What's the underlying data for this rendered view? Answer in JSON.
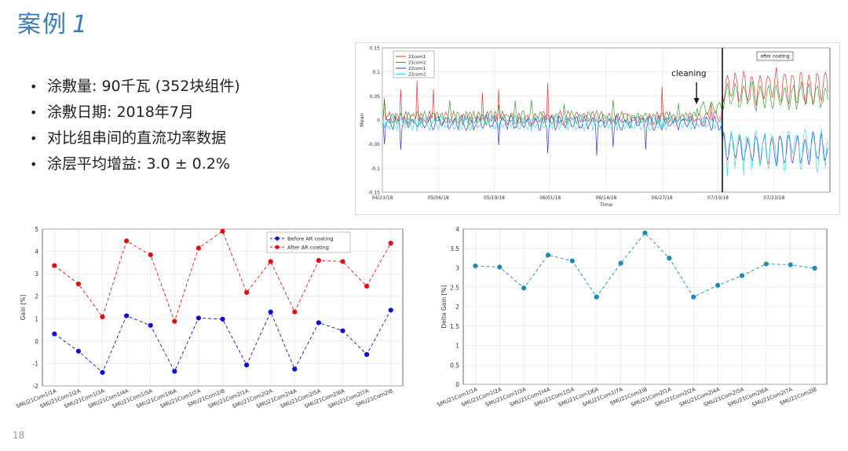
{
  "slide": {
    "title": "案例",
    "title_number": "1",
    "page_number": "18",
    "bullets": [
      "涂敷量: 90千瓦 (352块组件)",
      "涂敷日期: 2018年7月",
      "对比组串间的直流功率数据",
      "涂层平均增益: 3.0 ± 0.2%"
    ]
  },
  "colors": {
    "title": "#3b7bbd",
    "series_21com1": "#e02020",
    "series_21com2": "#1a9a1a",
    "series_22com1": "#2020c8",
    "series_22com2": "#20d8e8",
    "before": "#1010d0",
    "after": "#e01010",
    "delta": "#1f8ab8"
  },
  "chart_data": [
    {
      "type": "line",
      "xlabel": "Time",
      "ylabel": "Mean",
      "ylim": [
        -0.15,
        0.15
      ],
      "yticks": [
        "-0.15",
        "-0.1",
        "-0.05",
        "0",
        "0.05",
        "0.1",
        "0.15"
      ],
      "xticks": [
        "04/23/18",
        "05/06/18",
        "05/19/18",
        "06/01/18",
        "06/14/18",
        "06/27/18",
        "07/10/18",
        "07/23/18"
      ],
      "x_range": [
        "04/23/18",
        "08/05/18"
      ],
      "legend_position": "top-left",
      "series": [
        {
          "name": "21com1",
          "before_spike": 0.09,
          "after_level": 0.07
        },
        {
          "name": "21com2",
          "before_spike": 0.03,
          "after_level": 0.05
        },
        {
          "name": "22com1",
          "before_spike": -0.06,
          "after_level": -0.06
        },
        {
          "name": "22com2",
          "before_spike": -0.03,
          "after_level": -0.05
        }
      ],
      "annotations": {
        "cleaning": {
          "label": "cleaning",
          "date": "07/05/18"
        },
        "after_coating": {
          "label": "after coating",
          "date": "07/11/18"
        }
      },
      "grid": true
    },
    {
      "type": "line",
      "ylabel": "Gain [%]",
      "ylim": [
        -2,
        5
      ],
      "yticks": [
        "-2",
        "-1",
        "0",
        "1",
        "2",
        "3",
        "4",
        "5"
      ],
      "legend_position": "top-right",
      "categories": [
        "SMU21Com1I1A",
        "SMU21Com1I2A",
        "SMU21Com1I3A",
        "SMU21Com1I4A",
        "SMU21Com1I5A",
        "SMU21Com1I6A",
        "SMU21Com1I7A",
        "SMU21Com1I8",
        "SMU21Com2I1A",
        "SMU21Com2I2A",
        "SMU21Com2I4A",
        "SMU21Com2I5A",
        "SMU21Com2I6A",
        "SMU21Com2I7A",
        "SMU21Com2I8"
      ],
      "series": [
        {
          "name": "Before AR coating",
          "values": [
            0.32,
            -0.45,
            -1.4,
            1.13,
            0.7,
            -1.35,
            1.03,
            0.98,
            -1.07,
            1.3,
            -1.25,
            0.82,
            0.46,
            -0.6,
            1.38
          ]
        },
        {
          "name": "After AR coating",
          "values": [
            3.37,
            2.55,
            1.08,
            4.47,
            3.85,
            0.88,
            4.15,
            4.9,
            2.17,
            3.55,
            1.3,
            3.6,
            3.55,
            2.45,
            4.37
          ]
        }
      ],
      "grid": true
    },
    {
      "type": "line",
      "ylabel": "Delta Gain [%]",
      "ylim": [
        0,
        4
      ],
      "yticks": [
        "0",
        "0.5",
        "1",
        "1.5",
        "2",
        "2.5",
        "3",
        "3.5",
        "4"
      ],
      "categories": [
        "SMU21Com1I1A",
        "SMU21Com1I2A",
        "SMU21Com1I3A",
        "SMU21Com1I4A",
        "SMU21Com1I5A",
        "SMU21Com1I6A",
        "SMU21Com1I7A",
        "SMU21Com1I8",
        "SMU21Com2I1A",
        "SMU21Com2I2A",
        "SMU21Com2I4A",
        "SMU21Com2I5A",
        "SMU21Com2I6A",
        "SMU21Com2I7A",
        "SMU21Com2I8"
      ],
      "series": [
        {
          "values": [
            3.05,
            3.02,
            2.48,
            3.33,
            3.18,
            2.25,
            3.12,
            3.9,
            3.25,
            2.25,
            2.55,
            2.8,
            3.1,
            3.08,
            2.99
          ]
        }
      ],
      "grid": true
    }
  ]
}
